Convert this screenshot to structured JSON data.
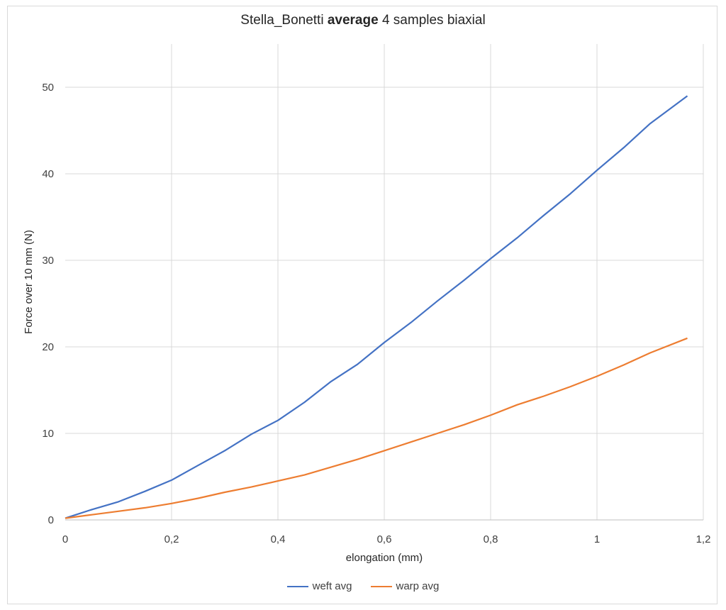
{
  "chart_data": {
    "type": "line",
    "title_parts": [
      "Stella_Bonetti ",
      "average",
      " 4 samples biaxial"
    ],
    "xlabel": "elongation (mm)",
    "ylabel": "Force over 10 mm (N)",
    "xlim": [
      0,
      1.2
    ],
    "ylim": [
      0,
      55
    ],
    "x_ticks": [
      "0",
      "0,2",
      "0,4",
      "0,6",
      "0,8",
      "1",
      "1,2"
    ],
    "x_tick_values": [
      0,
      0.2,
      0.4,
      0.6,
      0.8,
      1.0,
      1.2
    ],
    "y_ticks": [
      "0",
      "10",
      "20",
      "30",
      "40",
      "50"
    ],
    "y_tick_values": [
      0,
      10,
      20,
      30,
      40,
      50
    ],
    "grid": true,
    "legend_position": "bottom",
    "series": [
      {
        "name": "weft avg",
        "color": "#4472c4",
        "x": [
          0,
          0.05,
          0.1,
          0.15,
          0.2,
          0.25,
          0.3,
          0.35,
          0.4,
          0.45,
          0.5,
          0.55,
          0.6,
          0.65,
          0.7,
          0.75,
          0.8,
          0.85,
          0.9,
          0.95,
          1.0,
          1.05,
          1.1,
          1.17
        ],
        "y": [
          0.2,
          1.2,
          2.1,
          3.3,
          4.6,
          6.3,
          8.0,
          9.9,
          11.5,
          13.6,
          16.0,
          18.0,
          20.5,
          22.8,
          25.3,
          27.7,
          30.2,
          32.6,
          35.2,
          37.7,
          40.4,
          43.0,
          45.8,
          49.0
        ]
      },
      {
        "name": "warp avg",
        "color": "#ed7d31",
        "x": [
          0,
          0.05,
          0.1,
          0.15,
          0.2,
          0.25,
          0.3,
          0.35,
          0.4,
          0.45,
          0.5,
          0.55,
          0.6,
          0.65,
          0.7,
          0.75,
          0.8,
          0.85,
          0.9,
          0.95,
          1.0,
          1.05,
          1.1,
          1.17
        ],
        "y": [
          0.2,
          0.6,
          1.0,
          1.4,
          1.9,
          2.5,
          3.2,
          3.8,
          4.5,
          5.2,
          6.1,
          7.0,
          8.0,
          9.0,
          10.0,
          11.0,
          12.1,
          13.3,
          14.3,
          15.4,
          16.6,
          17.9,
          19.3,
          21.0
        ]
      }
    ]
  }
}
